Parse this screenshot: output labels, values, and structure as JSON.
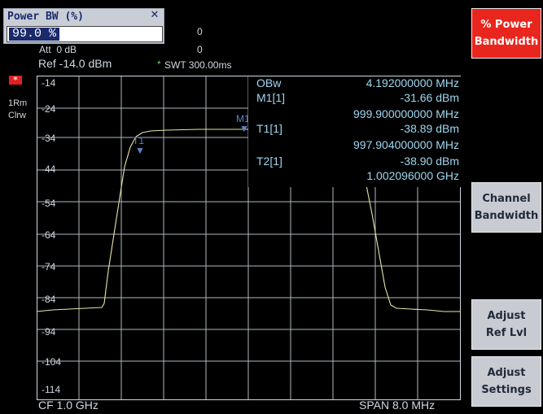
{
  "dialog": {
    "title": "Power BW (%)",
    "close": "✕",
    "value": "99.0 %"
  },
  "header": {
    "val1": "0",
    "att": "Att  0 dB",
    "val2": "0",
    "ref": "Ref -14.0 dBm",
    "swt_mark": "*",
    "swt": "SWT 300.00ms"
  },
  "trace": {
    "tag": "*",
    "line1": "1Rm",
    "line2": "Clrw"
  },
  "yaxis": [
    "-14",
    "-24",
    "-34",
    "-44",
    "-54",
    "-64",
    "-74",
    "-84",
    "-94",
    "-104",
    "-114"
  ],
  "markers": {
    "m1": "M1",
    "t1": "T1",
    "t2": "T2"
  },
  "marker_table": [
    {
      "label": "OBw",
      "value": "4.192000000 MHz"
    },
    {
      "label": "M1[1]",
      "value": "-31.66 dBm"
    },
    {
      "label": "",
      "value": "999.900000000 MHz"
    },
    {
      "label": "T1[1]",
      "value": "-38.89 dBm"
    },
    {
      "label": "",
      "value": "997.904000000 MHz"
    },
    {
      "label": "T2[1]",
      "value": "-38.90 dBm"
    },
    {
      "label": "",
      "value": "1.002096000 GHz"
    }
  ],
  "footer": {
    "cf": "CF 1.0 GHz",
    "span": "SPAN 8.0 MHz"
  },
  "softkeys": [
    {
      "line1": "% Power",
      "line2": "Bandwidth"
    },
    {
      "line1": "Channel",
      "line2": "Bandwidth"
    },
    {
      "line1": "Adjust",
      "line2": "Ref Lvl"
    },
    {
      "line1": "Adjust",
      "line2": "Settings"
    }
  ],
  "colors": {
    "trace": "#e6e6a8",
    "grid": "#cfd8e0",
    "marker": "#5a86c8",
    "active_softkey": "#e8261e"
  }
}
